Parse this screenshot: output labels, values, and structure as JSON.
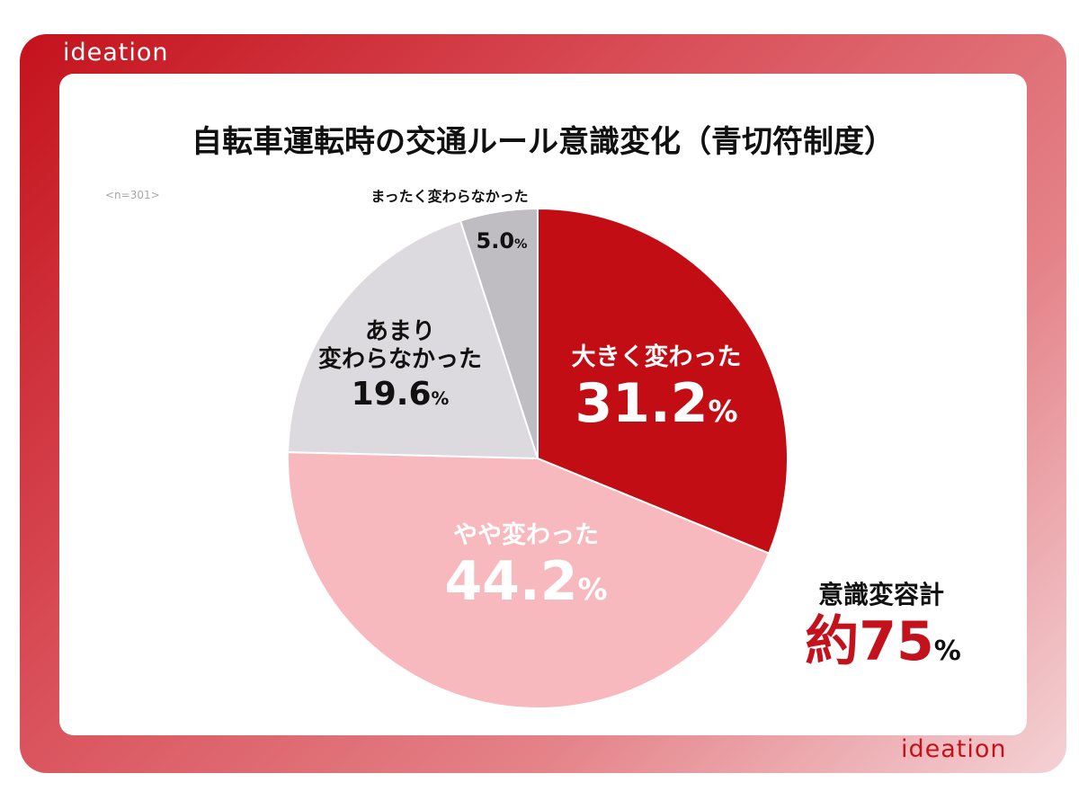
{
  "brand": {
    "logo_text": "ideation"
  },
  "colors": {
    "accent": "#c4121c",
    "slice_big": "#c30d14",
    "slice_some": "#f7b9bd",
    "slice_little": "#dcdadf",
    "slice_none": "#bfbcc2"
  },
  "sample_note": "<n=301>",
  "chart_data": {
    "type": "pie",
    "title": "自転車運転時の交通ルール意識変化（青切符制度）",
    "categories": [
      "大きく変わった",
      "やや変わった",
      "あまり変わらなかった",
      "まったく変わらなかった"
    ],
    "values": [
      31.2,
      44.2,
      19.6,
      5.0
    ],
    "value_labels": [
      "31.2",
      "44.2",
      "19.6",
      "5.0"
    ],
    "unit": "%",
    "label_lines": {
      "little": [
        "あまり",
        "変わらなかった"
      ]
    }
  },
  "summary": {
    "label": "意識変容計",
    "prefix": "約",
    "value": "75",
    "unit": "%"
  }
}
